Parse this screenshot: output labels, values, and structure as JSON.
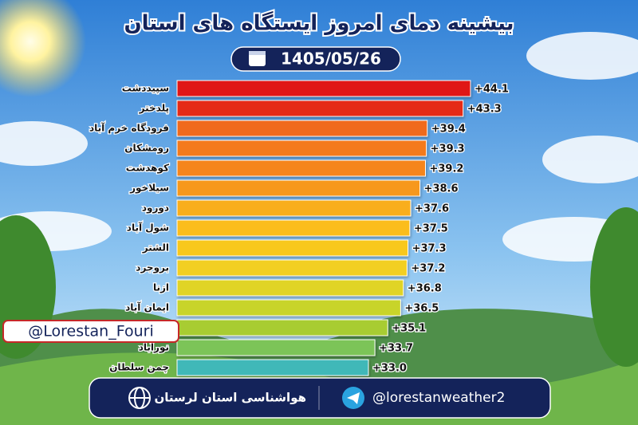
{
  "chart_data": {
    "type": "bar",
    "orientation": "horizontal",
    "title": "بیشینه دمای امروز ایستگاه های استان",
    "subtitle": "1405/05/26",
    "categories": [
      "سپیددشت",
      "پلدختر",
      "فرودگاه خرم آباد",
      "رومشکان",
      "کوهدشت",
      "سیلاخور",
      "دورود",
      "شول آباد",
      "الشتر",
      "بروجرد",
      "ازنا",
      "ایمان آباد",
      null,
      "نورآباد",
      "چمن سلطان"
    ],
    "values": [
      44.1,
      43.3,
      39.4,
      39.3,
      39.2,
      38.6,
      37.6,
      37.5,
      37.3,
      37.2,
      36.8,
      36.5,
      35.1,
      33.7,
      33.0
    ],
    "value_labels": [
      "+44.1",
      "+43.3",
      "+39.4",
      "+39.3",
      "+39.2",
      "+38.6",
      "+37.6",
      "+37.5",
      "+37.3",
      "+37.2",
      "+36.8",
      "+36.5",
      "+35.1",
      "+33.7",
      "+33.0"
    ],
    "colors": [
      "#e01515",
      "#e52a18",
      "#f06a1a",
      "#f47a1a",
      "#f5851c",
      "#f7981c",
      "#f9ae1c",
      "#fbbd1e",
      "#f8c81f",
      "#f2cf22",
      "#e0d426",
      "#c8d42a",
      "#a8cc32",
      "#7cc458",
      "#3fb8b8"
    ]
  },
  "watermark": "@Lorestan_Fouri",
  "footer": {
    "organization": "هواشناسی استان لرستان",
    "channel": "@lorestanweather2"
  }
}
